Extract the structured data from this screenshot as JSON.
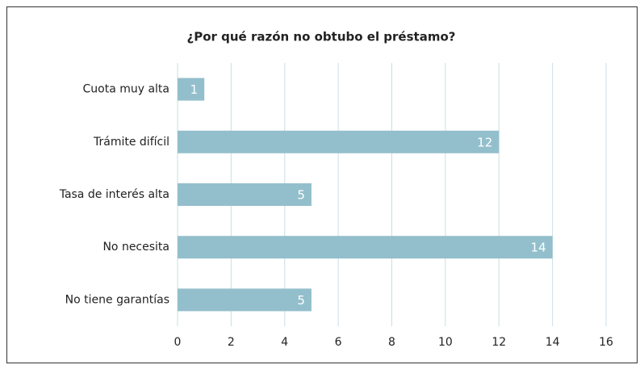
{
  "chart_data": {
    "type": "bar",
    "orientation": "horizontal",
    "title": "¿Por qué razón no obtubo el préstamo?",
    "categories": [
      "Cuota muy alta",
      "Trámite difícil",
      "Tasa de interés alta",
      "No necesita",
      "No tiene garantías"
    ],
    "values": [
      1,
      12,
      5,
      14,
      5
    ],
    "color": "#93bfcc",
    "xlim": [
      0,
      16
    ],
    "xticks": [
      0,
      2,
      4,
      6,
      8,
      10,
      12,
      14,
      16
    ],
    "grid": true
  }
}
